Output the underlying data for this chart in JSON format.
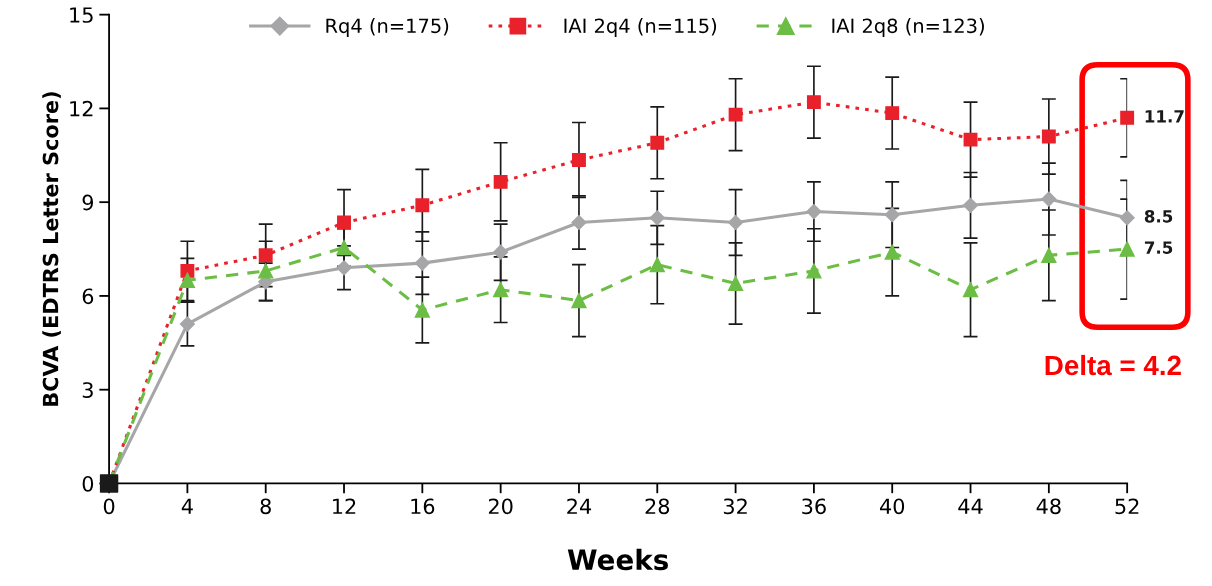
{
  "chart_data": {
    "type": "line",
    "xlabel": "Weeks",
    "ylabel": "BCVA (EDTRS Letter Score)",
    "xlim": [
      0,
      52
    ],
    "xticks": [
      0,
      4,
      8,
      12,
      16,
      20,
      24,
      28,
      32,
      36,
      40,
      44,
      48,
      52
    ],
    "ylim": [
      0,
      15
    ],
    "yticks": [
      0,
      3,
      6,
      9,
      12,
      15
    ],
    "grid": false,
    "legend": "top",
    "x": [
      0,
      4,
      8,
      12,
      16,
      20,
      24,
      28,
      32,
      36,
      40,
      44,
      48,
      52
    ],
    "series": [
      {
        "name": "Rq4 (n=175)",
        "color": "#a6a6a8",
        "marker": "diamond",
        "line_style": "solid",
        "values": [
          0,
          5.1,
          6.45,
          6.9,
          7.05,
          7.4,
          8.35,
          8.5,
          8.35,
          8.7,
          8.6,
          8.9,
          9.1,
          8.5
        ],
        "errors": [
          null,
          0.7,
          0.6,
          0.7,
          1.0,
          0.9,
          0.85,
          0.85,
          1.05,
          0.95,
          1.05,
          1.05,
          1.15,
          1.2
        ],
        "value_labels": [
          null,
          null,
          null,
          null,
          null,
          null,
          null,
          null,
          null,
          null,
          null,
          null,
          null,
          "8.5"
        ]
      },
      {
        "name": "IAI 2q4 (n=115)",
        "color": "#e8212b",
        "marker": "square",
        "line_style": "dotted",
        "values": [
          0,
          6.8,
          7.3,
          8.35,
          8.9,
          9.65,
          10.35,
          10.9,
          11.8,
          12.2,
          11.85,
          11.0,
          11.1,
          11.7
        ],
        "errors": [
          null,
          0.95,
          1.0,
          1.05,
          1.15,
          1.25,
          1.2,
          1.15,
          1.15,
          1.15,
          1.15,
          1.2,
          1.2,
          1.25
        ],
        "value_labels": [
          null,
          null,
          null,
          null,
          null,
          null,
          null,
          null,
          null,
          null,
          null,
          null,
          null,
          "11.7"
        ]
      },
      {
        "name": "IAI 2q8 (n=123)",
        "color": "#6cbd45",
        "marker": "triangle",
        "line_style": "dashed",
        "values": [
          0,
          6.5,
          6.8,
          7.55,
          5.55,
          6.2,
          5.85,
          7.0,
          6.4,
          6.8,
          7.4,
          6.2,
          7.3,
          7.5
        ],
        "errors": [
          null,
          0.7,
          0.95,
          0.6,
          1.05,
          1.05,
          1.15,
          1.25,
          1.3,
          1.35,
          1.4,
          1.5,
          1.45,
          1.6
        ],
        "value_labels": [
          null,
          null,
          null,
          null,
          null,
          null,
          null,
          null,
          null,
          null,
          null,
          null,
          null,
          "7.5"
        ]
      },
      {
        "type": "scatter",
        "x": [
          0
        ],
        "values": [
          0
        ],
        "color": "#1a1a1a",
        "marker": "square"
      }
    ],
    "annotations": [
      "Delta = 4.2"
    ]
  }
}
